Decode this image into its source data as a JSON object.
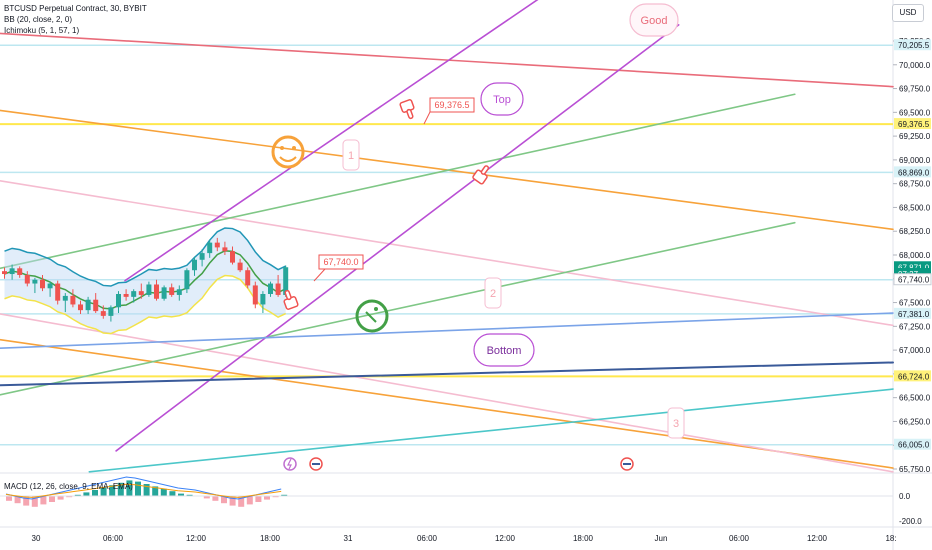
{
  "header": {
    "symbol_line": "BTCUSD Perpetual Contract, 30, BYBIT",
    "bb_line": "BB (20, close, 2, 0)",
    "ichimoku_line": "Ichimoku (5, 1, 57, 1)",
    "currency": "USD"
  },
  "macd": {
    "label": "MACD (12, 26, close, 9, EMA, EMA)"
  },
  "annotations": {
    "good": "Good",
    "top": "Top",
    "bottom": "Bottom",
    "n1": "1",
    "n2": "2",
    "n3": "3",
    "price_69376": "69,376.5",
    "price_67740": "67,740.0"
  },
  "colors": {
    "purple": "#b94fd4",
    "green": "#7fc786",
    "orange": "#f7a23a",
    "pink": "#f5bcd0",
    "red": "#e96c7a",
    "blue": "#7ba4e8",
    "navy": "#3a5a99",
    "teal": "#4cc7c9",
    "yellow_line": "#ffe84d",
    "cyan_line": "#bde7f0",
    "bull": "#26a69a",
    "bear": "#ef5350",
    "current_price": "#089981",
    "macd_line": "#3b82f6",
    "signal_line": "#f59e0b"
  },
  "chart_data": {
    "type": "candlestick",
    "title": "BTCUSD Perpetual Contract, 30, BYBIT",
    "y_axis": {
      "ticks": [
        "70,250.0",
        "70,000.0",
        "69,750.0",
        "69,500.0",
        "69,250.0",
        "69,000.0",
        "68,750.0",
        "68,500.0",
        "68,250.0",
        "68,000.0",
        "67,750.0",
        "67,500.0",
        "67,250.0",
        "67,000.0",
        "66,750.0",
        "66,500.0",
        "66,250.0",
        "66,000.0",
        "65,750.0"
      ],
      "range": [
        65700,
        70300
      ]
    },
    "x_axis": {
      "ticks": [
        "30",
        "06:00",
        "12:00",
        "18:00",
        "31",
        "06:00",
        "12:00",
        "18:00",
        "Jun",
        "06:00",
        "12:00",
        "18:"
      ]
    },
    "price_labels": [
      {
        "text": "70,205.5",
        "value": 70205.5,
        "style": "cyan"
      },
      {
        "text": "69,376.5",
        "value": 69376.5,
        "style": "yellow"
      },
      {
        "text": "68,869.0",
        "value": 68869.0,
        "style": "cyan"
      },
      {
        "text": "67,871.0",
        "value": 67871.0,
        "style": "current"
      },
      {
        "text": "07:27",
        "value": 67800,
        "style": "current"
      },
      {
        "text": "67,740.0",
        "value": 67740.0,
        "style": "white"
      },
      {
        "text": "67,381.0",
        "value": 67381.0,
        "style": "cyan"
      },
      {
        "text": "66,724.0",
        "value": 66724.0,
        "style": "yellow"
      },
      {
        "text": "66,005.0",
        "value": 66005.0,
        "style": "cyan"
      }
    ],
    "horizontal_levels": [
      {
        "value": 70205.5,
        "color": "cyan"
      },
      {
        "value": 69376.5,
        "color": "yellow"
      },
      {
        "value": 68869.0,
        "color": "cyan"
      },
      {
        "value": 67740.0,
        "color": "cyan"
      },
      {
        "value": 67381.0,
        "color": "cyan"
      },
      {
        "value": 66724.0,
        "color": "yellow"
      },
      {
        "value": 66005.0,
        "color": "cyan"
      }
    ],
    "trend_lines": [
      {
        "name": "red",
        "color": "red",
        "points": [
          [
            0,
            70330
          ],
          [
            100,
            69770
          ]
        ]
      },
      {
        "name": "orange-upper",
        "color": "orange",
        "points": [
          [
            0,
            69520
          ],
          [
            100,
            68270
          ]
        ]
      },
      {
        "name": "orange-lower",
        "color": "orange",
        "points": [
          [
            0,
            67110
          ],
          [
            100,
            65760
          ]
        ]
      },
      {
        "name": "pink-upper",
        "color": "pink",
        "points": [
          [
            0,
            68780
          ],
          [
            100,
            67260
          ]
        ]
      },
      {
        "name": "pink-lower",
        "color": "pink",
        "points": [
          [
            0,
            67380
          ],
          [
            100,
            65720
          ]
        ]
      },
      {
        "name": "green-upper",
        "color": "green",
        "points": [
          [
            0,
            67860
          ],
          [
            89,
            69690
          ]
        ]
      },
      {
        "name": "green-lower",
        "color": "green",
        "points": [
          [
            0,
            66530
          ],
          [
            89,
            68340
          ]
        ]
      },
      {
        "name": "purple-upper",
        "color": "purple",
        "points": [
          [
            14,
            67730
          ],
          [
            62,
            70800
          ]
        ]
      },
      {
        "name": "purple-lower",
        "color": "purple",
        "points": [
          [
            13,
            65940
          ],
          [
            76,
            70420
          ]
        ]
      },
      {
        "name": "blue",
        "color": "blue",
        "points": [
          [
            0,
            67020
          ],
          [
            100,
            67390
          ]
        ]
      },
      {
        "name": "navy",
        "color": "navy",
        "points": [
          [
            0,
            66630
          ],
          [
            100,
            66870
          ]
        ]
      },
      {
        "name": "teal",
        "color": "teal",
        "points": [
          [
            10,
            65720
          ],
          [
            100,
            66590
          ]
        ]
      }
    ],
    "candles": [
      [
        67830,
        67870,
        67750,
        67800
      ],
      [
        67800,
        67900,
        67740,
        67860
      ],
      [
        67860,
        67880,
        67760,
        67790
      ],
      [
        67790,
        67830,
        67670,
        67700
      ],
      [
        67700,
        67760,
        67600,
        67740
      ],
      [
        67740,
        67790,
        67620,
        67650
      ],
      [
        67650,
        67720,
        67560,
        67700
      ],
      [
        67700,
        67730,
        67480,
        67520
      ],
      [
        67520,
        67600,
        67400,
        67570
      ],
      [
        67570,
        67640,
        67450,
        67480
      ],
      [
        67480,
        67520,
        67380,
        67420
      ],
      [
        67420,
        67560,
        67380,
        67530
      ],
      [
        67530,
        67600,
        67390,
        67410
      ],
      [
        67410,
        67470,
        67330,
        67360
      ],
      [
        67360,
        67470,
        67300,
        67450
      ],
      [
        67450,
        67620,
        67390,
        67590
      ],
      [
        67590,
        67640,
        67520,
        67560
      ],
      [
        67560,
        67640,
        67500,
        67620
      ],
      [
        67620,
        67700,
        67540,
        67580
      ],
      [
        67580,
        67720,
        67560,
        67690
      ],
      [
        67690,
        67740,
        67520,
        67540
      ],
      [
        67540,
        67680,
        67520,
        67660
      ],
      [
        67660,
        67700,
        67560,
        67580
      ],
      [
        67580,
        67680,
        67520,
        67640
      ],
      [
        67640,
        67860,
        67600,
        67840
      ],
      [
        67840,
        67980,
        67780,
        67950
      ],
      [
        67950,
        68060,
        67880,
        68020
      ],
      [
        68020,
        68160,
        67970,
        68130
      ],
      [
        68130,
        68180,
        68040,
        68080
      ],
      [
        68080,
        68140,
        68000,
        68040
      ],
      [
        68040,
        68090,
        67900,
        67920
      ],
      [
        67920,
        67960,
        67820,
        67840
      ],
      [
        67840,
        67870,
        67650,
        67680
      ],
      [
        67680,
        67720,
        67440,
        67480
      ],
      [
        67480,
        67620,
        67390,
        67590
      ],
      [
        67590,
        67720,
        67560,
        67700
      ],
      [
        67700,
        67790,
        67560,
        67580
      ],
      [
        67580,
        67890,
        67560,
        67871
      ]
    ],
    "macd": {
      "label": "MACD (12, 26, close, 9, EMA, EMA)",
      "ticks": [
        "0.0",
        "-200.0"
      ],
      "histogram": [
        -40,
        -60,
        -80,
        -90,
        -70,
        -50,
        -30,
        -10,
        10,
        30,
        50,
        70,
        90,
        110,
        130,
        120,
        100,
        80,
        60,
        40,
        20,
        10,
        0,
        -20,
        -40,
        -60,
        -80,
        -90,
        -70,
        -50,
        -30,
        -10,
        10
      ]
    }
  }
}
